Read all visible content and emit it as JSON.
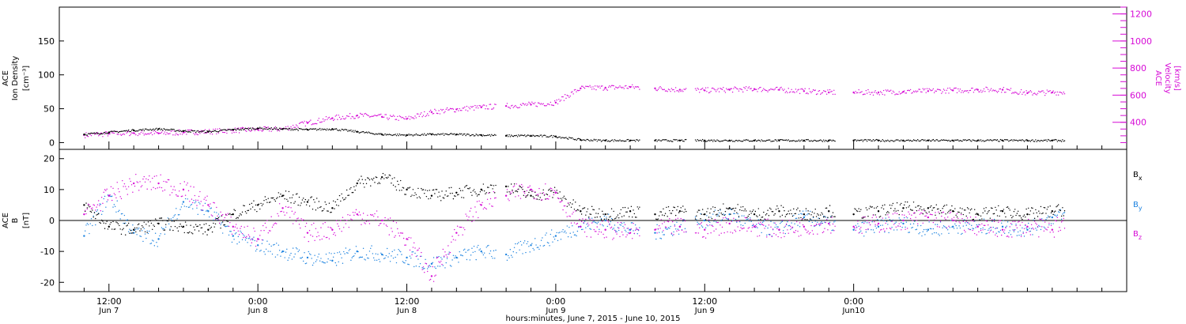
{
  "chart_data": [
    {
      "type": "scatter",
      "panel": "top",
      "ylabel_lines": [
        "ACE",
        "Ion Density"
      ],
      "ylabel_unit": "[cm⁻³]",
      "ylim": [
        -10,
        200
      ],
      "yticks": [
        0,
        50,
        100,
        150
      ],
      "y2label_lines": [
        "ACE",
        "Velocity"
      ],
      "y2label_unit": "[km/s]",
      "y2lim": [
        200,
        1250
      ],
      "y2ticks": [
        400,
        600,
        800,
        1000,
        1200
      ],
      "series": [
        {
          "name": "Ion Density",
          "axis": "left",
          "color": "#000000",
          "x": [
            0,
            2,
            4,
            6,
            8,
            10,
            12,
            14,
            16,
            18,
            20,
            22,
            24,
            26,
            28,
            30,
            32,
            34,
            36,
            38,
            40,
            42,
            44,
            46,
            48,
            50,
            52,
            54,
            56,
            58,
            60,
            62,
            64,
            66,
            68,
            70,
            72,
            74,
            76,
            78,
            80
          ],
          "y": [
            12,
            15,
            18,
            20,
            17,
            16,
            19,
            21,
            20,
            19,
            20,
            16,
            12,
            11,
            12,
            12,
            11,
            10,
            10,
            9,
            4,
            3,
            3,
            3,
            3,
            3,
            3,
            3,
            3,
            3,
            3,
            3,
            3,
            3,
            3,
            3,
            3,
            3,
            3,
            3,
            3
          ]
        },
        {
          "name": "Velocity",
          "axis": "right",
          "color": "#d60ad6",
          "x": [
            0,
            2,
            4,
            6,
            8,
            10,
            12,
            14,
            16,
            18,
            20,
            22,
            24,
            26,
            28,
            30,
            32,
            34,
            36,
            38,
            40,
            42,
            44,
            46,
            48,
            50,
            52,
            54,
            56,
            58,
            60,
            62,
            64,
            66,
            68,
            70,
            72,
            74,
            76,
            78,
            80
          ],
          "y": [
            305,
            315,
            320,
            318,
            325,
            330,
            340,
            345,
            350,
            395,
            430,
            450,
            440,
            425,
            475,
            495,
            510,
            520,
            530,
            545,
            650,
            655,
            660,
            650,
            640,
            635,
            640,
            645,
            640,
            630,
            620,
            620,
            620,
            625,
            630,
            635,
            640,
            640,
            615,
            620,
            625
          ]
        }
      ]
    },
    {
      "type": "scatter",
      "panel": "bottom",
      "ylabel_lines": [
        "ACE",
        "B"
      ],
      "ylabel_unit": "[nT]",
      "ylim": [
        -23,
        23
      ],
      "yticks": [
        -20,
        -10,
        0,
        10,
        20
      ],
      "series": [
        {
          "name": "Bx",
          "color": "#000000",
          "x": [
            0,
            2,
            4,
            6,
            8,
            10,
            12,
            14,
            16,
            18,
            20,
            22,
            24,
            26,
            28,
            30,
            32,
            34,
            36,
            38,
            40,
            42,
            44,
            46,
            48,
            50,
            52,
            54,
            56,
            58,
            60,
            62,
            64,
            66,
            68,
            70,
            72,
            74,
            76,
            78,
            80
          ],
          "y": [
            5,
            -2,
            -3,
            -1,
            -2,
            -3,
            2,
            5,
            8,
            6,
            4,
            12,
            14,
            10,
            8,
            9,
            10,
            11,
            8,
            9,
            3,
            2,
            3,
            2,
            3,
            2,
            4,
            2,
            3,
            2,
            3,
            2,
            3,
            4,
            4,
            3,
            2,
            3,
            2,
            3,
            4
          ]
        },
        {
          "name": "By",
          "color": "#1b82e0",
          "x": [
            0,
            2,
            4,
            6,
            8,
            10,
            12,
            14,
            16,
            18,
            20,
            22,
            24,
            26,
            28,
            30,
            32,
            34,
            36,
            38,
            40,
            42,
            44,
            46,
            48,
            50,
            52,
            54,
            56,
            58,
            60,
            62,
            64,
            66,
            68,
            70,
            72,
            74,
            76,
            78,
            80
          ],
          "y": [
            -5,
            8,
            -4,
            -6,
            6,
            3,
            -5,
            -8,
            -10,
            -12,
            -13,
            -10,
            -11,
            -12,
            -14,
            -12,
            -10,
            -11,
            -8,
            -5,
            -2,
            0,
            -3,
            -4,
            -2,
            0,
            2,
            -2,
            -3,
            1,
            -1,
            -3,
            -2,
            -1,
            -3,
            -2,
            -2,
            -2,
            -3,
            1,
            2
          ]
        },
        {
          "name": "Bz",
          "color": "#d60ad6",
          "x": [
            0,
            2,
            4,
            6,
            8,
            10,
            12,
            14,
            16,
            18,
            20,
            22,
            24,
            26,
            28,
            30,
            32,
            34,
            36,
            38,
            40,
            42,
            44,
            46,
            48,
            50,
            52,
            54,
            56,
            58,
            60,
            62,
            64,
            66,
            68,
            70,
            72,
            74,
            76,
            78,
            80
          ],
          "y": [
            2,
            8,
            12,
            12,
            10,
            5,
            -2,
            -6,
            4,
            -4,
            -3,
            2,
            0,
            -6,
            -18,
            -4,
            5,
            8,
            10,
            9,
            -2,
            -3,
            -4,
            -3,
            -2,
            -3,
            -1,
            -2,
            -3,
            -2,
            -1,
            -2,
            -1,
            0,
            1,
            0,
            -2,
            -3,
            -2,
            -3,
            3
          ]
        }
      ],
      "legend": {
        "placement": "right",
        "entries": [
          {
            "label": "B",
            "sub": "x",
            "color": "#000000"
          },
          {
            "label": "B",
            "sub": "y",
            "color": "#1b82e0"
          },
          {
            "label": "B",
            "sub": "z",
            "color": "#d60ad6"
          }
        ]
      }
    }
  ],
  "x_axis": {
    "unit": "hours",
    "range": [
      -2,
      84
    ],
    "ticks": [
      {
        "x": 2,
        "time": "12:00",
        "date": "Jun 7"
      },
      {
        "x": 14,
        "time": "0:00",
        "date": "Jun 8"
      },
      {
        "x": 26,
        "time": "12:00",
        "date": "Jun 8"
      },
      {
        "x": 38,
        "time": "0:00",
        "date": "Jun 9"
      },
      {
        "x": 50,
        "time": "12:00",
        "date": "Jun 9"
      },
      {
        "x": 62,
        "time": "0:00",
        "date": "Jun10"
      }
    ],
    "label": "hours:minutes, June  7, 2015 - June 10, 2015"
  },
  "colors": {
    "density": "#000000",
    "velocity": "#d60ad6",
    "bx": "#000000",
    "by": "#1b82e0",
    "bz": "#d60ad6"
  }
}
